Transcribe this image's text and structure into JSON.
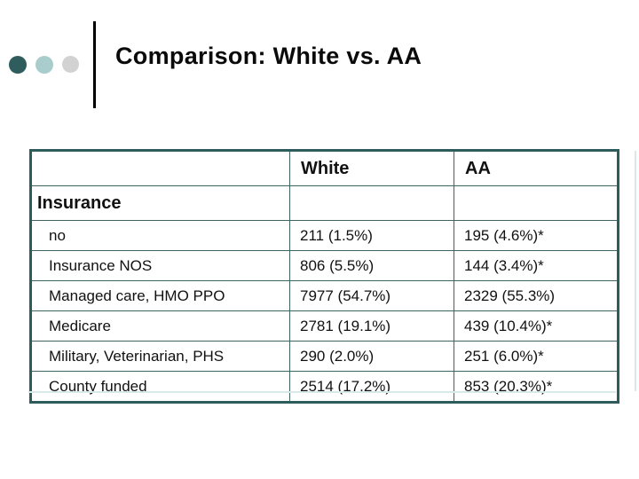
{
  "slide": {
    "title": "Comparison: White vs. AA"
  },
  "theme": {
    "dot1": "#2f5d5d",
    "dot2": "#a9cccc",
    "dot3": "#d2d2d2",
    "bar": "#000000",
    "border_strong": "#2e5b5b",
    "border_thin": "#3e6464",
    "shadow": "#d9e8e8"
  },
  "table": {
    "columns": [
      "",
      "White",
      "AA"
    ],
    "section_label": "Insurance",
    "rows": [
      {
        "label": "no",
        "white": "211 (1.5%)",
        "aa": "195 (4.6%)*"
      },
      {
        "label": "Insurance NOS",
        "white": "806 (5.5%)",
        "aa": "144 (3.4%)*"
      },
      {
        "label": "Managed care, HMO PPO",
        "white": "7977 (54.7%)",
        "aa": "2329 (55.3%)"
      },
      {
        "label": "Medicare",
        "white": "2781 (19.1%)",
        "aa": "439 (10.4%)*"
      },
      {
        "label": "Military, Veterinarian, PHS",
        "white": "290 (2.0%)",
        "aa": "251 (6.0%)*"
      },
      {
        "label": "County funded",
        "white": "2514 (17.2%)",
        "aa": "853 (20.3%)*"
      }
    ]
  }
}
